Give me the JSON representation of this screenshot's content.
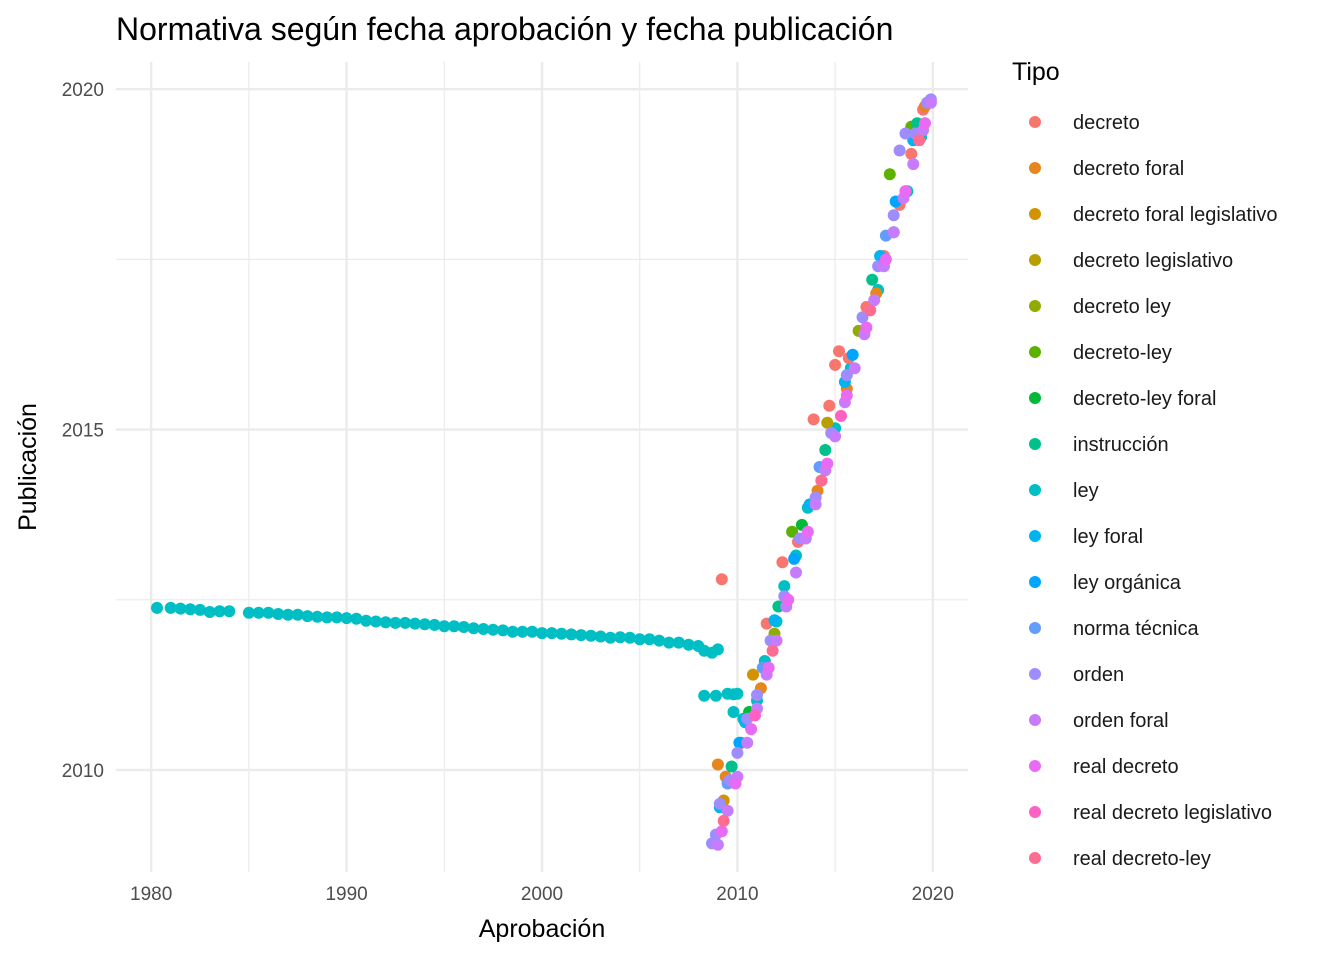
{
  "chart_data": {
    "type": "scatter",
    "title": "Normativa según fecha aprobación y fecha publicación",
    "xlabel": "Aprobación",
    "ylabel": "Publicación",
    "xlim": [
      1978.2,
      2021.8
    ],
    "ylim": [
      2008.5,
      2020.4
    ],
    "x_ticks": [
      1980,
      1990,
      2000,
      2010,
      2020
    ],
    "y_ticks": [
      2010,
      2015,
      2020
    ],
    "grid": true,
    "legend": {
      "title": "Tipo",
      "placement": "right",
      "entries": [
        {
          "name": "decreto",
          "color": "#F8766D"
        },
        {
          "name": "decreto foral",
          "color": "#E7861B"
        },
        {
          "name": "decreto foral legislativo",
          "color": "#D39200"
        },
        {
          "name": "decreto legislativo",
          "color": "#B79F00"
        },
        {
          "name": "decreto ley",
          "color": "#93AA00"
        },
        {
          "name": "decreto-ley",
          "color": "#5BB300"
        },
        {
          "name": "decreto-ley foral",
          "color": "#00BA38"
        },
        {
          "name": "instrucción",
          "color": "#00C08B"
        },
        {
          "name": "ley",
          "color": "#00BFC4"
        },
        {
          "name": "ley foral",
          "color": "#00B4F0"
        },
        {
          "name": "ley orgánica",
          "color": "#00A5FF"
        },
        {
          "name": "norma técnica",
          "color": "#619CFF"
        },
        {
          "name": "orden",
          "color": "#9F8CFF"
        },
        {
          "name": "orden foral",
          "color": "#C77CFF"
        },
        {
          "name": "real decreto",
          "color": "#E76BF3"
        },
        {
          "name": "real decreto legislativo",
          "color": "#FF61C3"
        },
        {
          "name": "real decreto-ley",
          "color": "#FF6C92"
        }
      ]
    },
    "series": [
      {
        "name": "ley",
        "x": [
          1980.3,
          1981.0,
          1981.5,
          1982.0,
          1982.5,
          1983.0,
          1983.5,
          1984.0,
          1985.0,
          1985.5,
          1986.0,
          1986.5,
          1987.0,
          1987.5,
          1988.0,
          1988.5,
          1989.0,
          1989.5,
          1990.0,
          1990.5,
          1991.0,
          1991.5,
          1992.0,
          1992.5,
          1993.0,
          1993.5,
          1994.0,
          1994.5,
          1995.0,
          1995.5,
          1996.0,
          1996.5,
          1997.0,
          1997.5,
          1998.0,
          1998.5,
          1999.0,
          1999.5,
          2000.0,
          2000.5,
          2001.0,
          2001.5,
          2002.0,
          2002.5,
          2003.0,
          2003.5,
          2004.0,
          2004.5,
          2005.0,
          2005.5,
          2006.0,
          2006.5,
          2007.0,
          2007.5,
          2008.0,
          2008.3,
          2008.7,
          2009.0,
          2008.3,
          2008.9,
          2009.5,
          2009.8,
          2010.0,
          2009.8,
          2010.3,
          2011.0,
          2011.4,
          2012.0,
          2012.4,
          2013.0,
          2013.6,
          2014.3,
          2015.0,
          2015.8,
          2016.5,
          2017.2,
          2018.0,
          2018.7,
          2019.4
        ],
        "y": [
          2012.38,
          2012.38,
          2012.37,
          2012.36,
          2012.35,
          2012.32,
          2012.33,
          2012.33,
          2012.31,
          2012.31,
          2012.31,
          2012.29,
          2012.28,
          2012.28,
          2012.26,
          2012.25,
          2012.24,
          2012.24,
          2012.23,
          2012.22,
          2012.19,
          2012.18,
          2012.17,
          2012.16,
          2012.16,
          2012.15,
          2012.14,
          2012.13,
          2012.11,
          2012.11,
          2012.1,
          2012.08,
          2012.07,
          2012.06,
          2012.05,
          2012.03,
          2012.03,
          2012.03,
          2012.01,
          2012.01,
          2012.0,
          2011.99,
          2011.98,
          2011.97,
          2011.96,
          2011.94,
          2011.95,
          2011.94,
          2011.92,
          2011.92,
          2011.9,
          2011.87,
          2011.87,
          2011.84,
          2011.82,
          2011.75,
          2011.72,
          2011.77,
          2011.09,
          2011.09,
          2011.12,
          2011.11,
          2011.12,
          2010.85,
          2010.75,
          2011.02,
          2011.6,
          2012.18,
          2012.7,
          2013.15,
          2013.85,
          2014.25,
          2015.02,
          2015.9,
          2016.45,
          2017.05,
          2017.9,
          2018.5,
          2019.3
        ]
      },
      {
        "name": "decreto",
        "x": [
          2009.2,
          2011.5,
          2012.3,
          2013.1,
          2013.9,
          2014.7,
          2015.0,
          2015.2,
          2015.7,
          2016.6,
          2017.5,
          2018.3,
          2018.9,
          2019.5
        ],
        "y": [
          2012.8,
          2012.15,
          2013.05,
          2013.35,
          2015.15,
          2015.35,
          2015.95,
          2016.15,
          2016.05,
          2016.8,
          2017.55,
          2018.3,
          2019.05,
          2019.7
        ]
      },
      {
        "name": "decreto foral",
        "x": [
          2009.0,
          2009.4,
          2010.2,
          2011.2,
          2012.5,
          2014.1,
          2015.6,
          2017.1,
          2018.6,
          2019.6
        ],
        "y": [
          2010.08,
          2009.9,
          2010.4,
          2011.2,
          2012.45,
          2014.1,
          2015.6,
          2017.0,
          2018.5,
          2019.75
        ]
      },
      {
        "name": "decreto foral legislativo",
        "x": [
          2009.3,
          2010.8
        ],
        "y": [
          2009.55,
          2011.4
        ]
      },
      {
        "name": "decreto legislativo",
        "x": [
          2014.6
        ],
        "y": [
          2015.1
        ]
      },
      {
        "name": "decreto ley",
        "x": [
          2011.9,
          2016.2
        ],
        "y": [
          2012.0,
          2016.45
        ]
      },
      {
        "name": "decreto-ley",
        "x": [
          2012.8,
          2017.8,
          2018.9
        ],
        "y": [
          2013.5,
          2018.75,
          2019.45
        ]
      },
      {
        "name": "decreto-ley foral",
        "x": [
          2010.6,
          2013.3
        ],
        "y": [
          2010.85,
          2013.6
        ]
      },
      {
        "name": "instrucción",
        "x": [
          2009.7,
          2012.1,
          2014.5,
          2016.9,
          2019.2
        ],
        "y": [
          2010.05,
          2012.4,
          2014.7,
          2017.2,
          2019.5
        ]
      },
      {
        "name": "ley foral",
        "x": [
          2009.1,
          2010.4,
          2011.9,
          2013.7,
          2015.5,
          2017.3,
          2019.0
        ],
        "y": [
          2009.45,
          2010.7,
          2012.2,
          2013.9,
          2015.7,
          2017.55,
          2019.25
        ]
      },
      {
        "name": "ley orgánica",
        "x": [
          2010.1,
          2012.9,
          2015.9,
          2018.1
        ],
        "y": [
          2010.4,
          2013.1,
          2016.1,
          2018.35
        ]
      },
      {
        "name": "norma técnica",
        "x": [
          2009.5,
          2011.3,
          2014.2,
          2017.6
        ],
        "y": [
          2009.8,
          2011.5,
          2014.45,
          2017.85
        ]
      },
      {
        "name": "orden",
        "x": [
          2008.7,
          2008.9,
          2009.1,
          2009.6,
          2010.0,
          2010.5,
          2011.0,
          2011.7,
          2012.4,
          2013.2,
          2014.0,
          2014.8,
          2015.6,
          2016.4,
          2017.2,
          2018.0,
          2018.3,
          2018.6,
          2019.1,
          2019.7,
          2019.9
        ],
        "y": [
          2008.92,
          2009.05,
          2009.5,
          2009.85,
          2010.25,
          2010.75,
          2011.1,
          2011.9,
          2012.55,
          2013.4,
          2014.0,
          2014.95,
          2015.8,
          2016.65,
          2017.4,
          2018.15,
          2019.1,
          2019.35,
          2019.35,
          2019.8,
          2019.85
        ]
      },
      {
        "name": "orden foral",
        "x": [
          2009.0,
          2009.5,
          2010.0,
          2010.5,
          2011.0,
          2011.5,
          2012.0,
          2012.5,
          2013.0,
          2013.5,
          2014.0,
          2014.5,
          2015.0,
          2015.5,
          2016.0,
          2016.5,
          2017.0,
          2017.5,
          2018.0,
          2018.5,
          2019.0,
          2019.5,
          2019.9
        ],
        "y": [
          2008.9,
          2009.4,
          2009.9,
          2010.4,
          2010.9,
          2011.4,
          2011.9,
          2012.4,
          2012.9,
          2013.4,
          2013.9,
          2014.4,
          2014.9,
          2015.4,
          2015.9,
          2016.4,
          2016.9,
          2017.4,
          2017.9,
          2018.4,
          2018.9,
          2019.4,
          2019.8
        ]
      },
      {
        "name": "real decreto",
        "x": [
          2009.2,
          2009.9,
          2010.7,
          2011.6,
          2012.6,
          2013.6,
          2014.6,
          2015.6,
          2016.6,
          2017.6,
          2018.6,
          2019.6
        ],
        "y": [
          2009.1,
          2009.8,
          2010.6,
          2011.5,
          2012.5,
          2013.5,
          2014.5,
          2015.5,
          2016.5,
          2017.5,
          2018.5,
          2019.5
        ]
      },
      {
        "name": "real decreto legislativo",
        "x": [
          2010.9,
          2015.3
        ],
        "y": [
          2010.8,
          2015.2
        ]
      },
      {
        "name": "real decreto-ley",
        "x": [
          2009.3,
          2011.8,
          2014.3,
          2016.8,
          2019.3
        ],
        "y": [
          2009.25,
          2011.75,
          2014.25,
          2016.75,
          2019.25
        ]
      }
    ]
  }
}
